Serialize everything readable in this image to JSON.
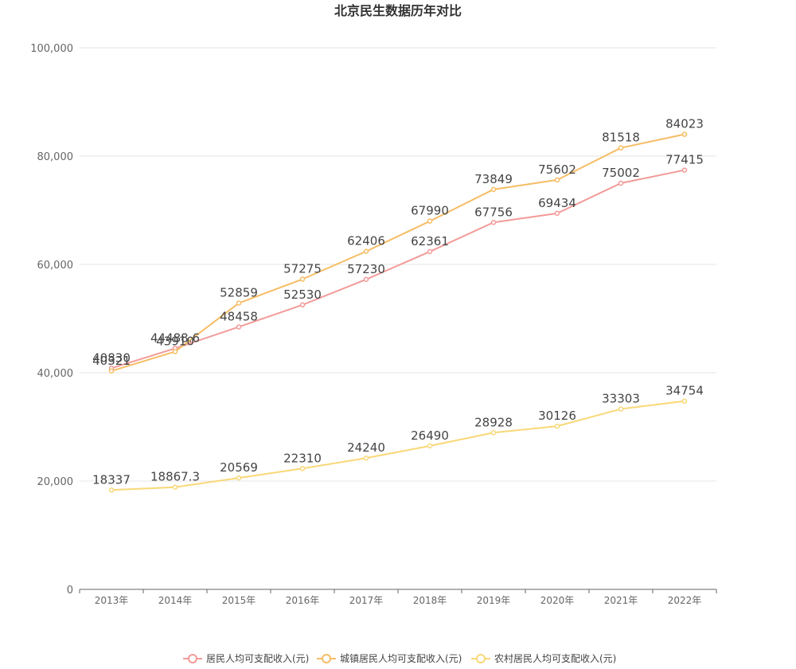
{
  "chart_data": {
    "type": "line",
    "title": "北京民生数据历年对比",
    "xlabel": "",
    "ylabel": "",
    "categories": [
      "2013年",
      "2014年",
      "2015年",
      "2016年",
      "2017年",
      "2018年",
      "2019年",
      "2020年",
      "2021年",
      "2022年"
    ],
    "ylim": [
      0,
      100000
    ],
    "yticks": [
      0,
      20000,
      40000,
      60000,
      80000,
      100000
    ],
    "ytick_labels": [
      "0",
      "20,000",
      "40,000",
      "60,000",
      "80,000",
      "100,000"
    ],
    "grid": true,
    "legend_position": "bottom",
    "series": [
      {
        "name": "居民人均可支配收入(元)",
        "color": "#f29b98",
        "values": [
          40830,
          44488.6,
          48458,
          52530,
          57230,
          62361,
          67756,
          69434,
          75002,
          77415
        ],
        "labels": [
          "40830",
          "44488.6",
          "48458",
          "52530",
          "57230",
          "62361",
          "67756",
          "69434",
          "75002",
          "77415"
        ]
      },
      {
        "name": "城镇居民人均可支配收入(元)",
        "color": "#f6bd65",
        "values": [
          40321,
          43910,
          52859,
          57275,
          62406,
          67990,
          73849,
          75602,
          81518,
          84023
        ],
        "labels": [
          "40321",
          "43910",
          "52859",
          "57275",
          "62406",
          "67990",
          "73849",
          "75602",
          "81518",
          "84023"
        ]
      },
      {
        "name": "农村居民人均可支配收入(元)",
        "color": "#f8d878",
        "values": [
          18337,
          18867.3,
          20569,
          22310,
          24240,
          26490,
          28928,
          30126,
          33303,
          34754
        ],
        "labels": [
          "18337",
          "18867.3",
          "20569",
          "22310",
          "24240",
          "26490",
          "28928",
          "30126",
          "33303",
          "34754"
        ]
      }
    ]
  }
}
